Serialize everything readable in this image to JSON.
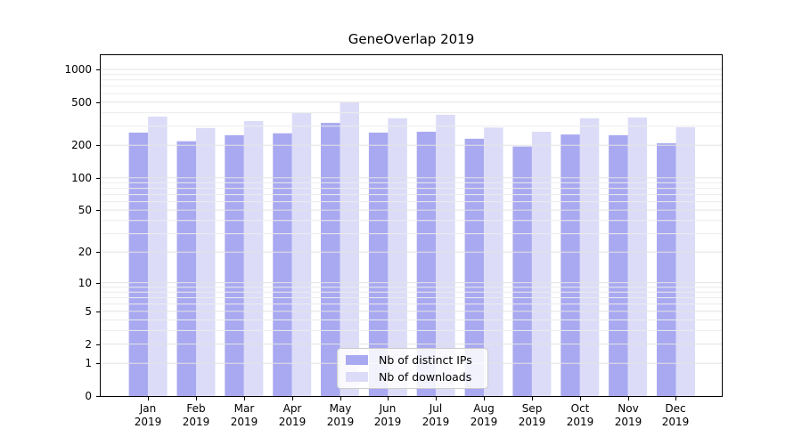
{
  "title": "GeneOverlap 2019",
  "chart_data": {
    "type": "bar",
    "title": "GeneOverlap 2019",
    "xlabel": "",
    "ylabel": "",
    "categories": [
      "Jan",
      "Feb",
      "Mar",
      "Apr",
      "May",
      "Jun",
      "Jul",
      "Aug",
      "Sep",
      "Oct",
      "Nov",
      "Dec"
    ],
    "year_label": "2019",
    "series": [
      {
        "name": "Nb of distinct IPs",
        "color": "#a9a9f1",
        "values": [
          262,
          218,
          248,
          258,
          322,
          262,
          267,
          230,
          195,
          252,
          248,
          209
        ]
      },
      {
        "name": "Nb of downloads",
        "color": "#dcdcf8",
        "values": [
          368,
          289,
          335,
          397,
          498,
          355,
          382,
          292,
          267,
          355,
          361,
          294
        ]
      }
    ],
    "y_scale": "log1p",
    "y_ticks": [
      0,
      1,
      2,
      5,
      10,
      20,
      50,
      100,
      200,
      500,
      1000
    ],
    "minor_gridlines": [
      3,
      4,
      6,
      7,
      8,
      9,
      30,
      40,
      60,
      70,
      80,
      90,
      300,
      400,
      600,
      700,
      800,
      900
    ],
    "ylim": [
      0,
      1350
    ],
    "grid": true,
    "legend_position": "lower center"
  },
  "legend": {
    "items": [
      {
        "label": "Nb of distinct IPs"
      },
      {
        "label": "Nb of downloads"
      }
    ]
  },
  "colors": {
    "bar_dark": "#a9a9f1",
    "bar_light": "#dcdcf8",
    "gridline_minor": "#ececec",
    "gridline_major": "#e3e3e3",
    "spine": "#000000",
    "legend_border": "#cccccc"
  }
}
